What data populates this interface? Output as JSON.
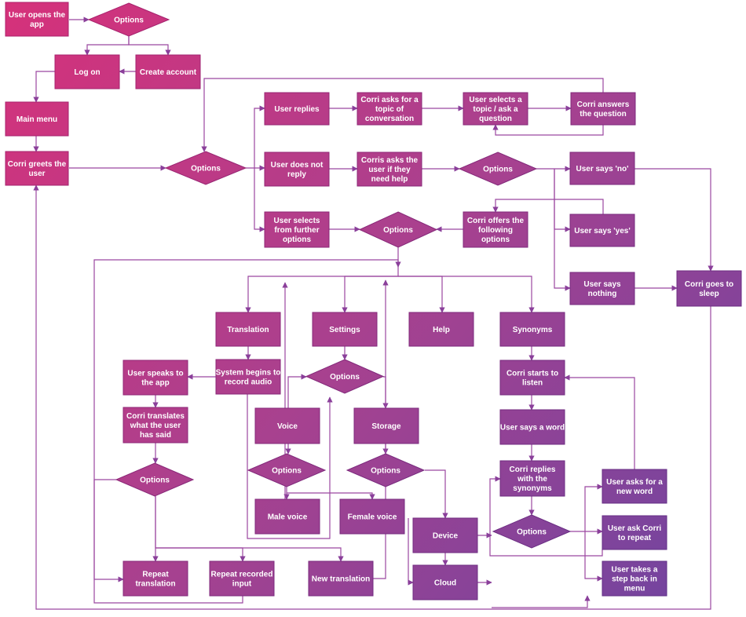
{
  "colors": {
    "start": "#d6317a",
    "mid": "#a8418f",
    "end": "#6c45a1",
    "stroke_start": "#b1206a",
    "stroke_end": "#57318a"
  },
  "nodes": [
    {
      "id": "n_open",
      "shape": "rect",
      "label": "User opens the app"
    },
    {
      "id": "d_start",
      "shape": "diamond",
      "label": "Options"
    },
    {
      "id": "n_logon",
      "shape": "rect",
      "label": "Log on"
    },
    {
      "id": "n_create",
      "shape": "rect",
      "label": "Create account"
    },
    {
      "id": "n_main",
      "shape": "rect",
      "label": "Main menu"
    },
    {
      "id": "n_greet",
      "shape": "rect",
      "label": "Corri greets the user"
    },
    {
      "id": "d_greet",
      "shape": "diamond",
      "label": "Options"
    },
    {
      "id": "n_replies",
      "shape": "rect",
      "label": "User replies"
    },
    {
      "id": "n_asktopic",
      "shape": "rect",
      "label": "Corri asks for a topic of conversation"
    },
    {
      "id": "n_selecttopic",
      "shape": "rect",
      "label": "User selects a topic / ask a question"
    },
    {
      "id": "n_answers",
      "shape": "rect",
      "label": "Corri answers the question"
    },
    {
      "id": "n_noreply",
      "shape": "rect",
      "label": "User does not reply"
    },
    {
      "id": "n_askhelp",
      "shape": "rect",
      "label": "Corris asks the user if they need help"
    },
    {
      "id": "d_help",
      "shape": "diamond",
      "label": "Options"
    },
    {
      "id": "n_no",
      "shape": "rect",
      "label": "User says 'no'"
    },
    {
      "id": "n_yes",
      "shape": "rect",
      "label": "User says 'yes'"
    },
    {
      "id": "n_nothing",
      "shape": "rect",
      "label": "User says nothing"
    },
    {
      "id": "n_sleep",
      "shape": "rect",
      "label": "Corri goes to sleep"
    },
    {
      "id": "n_further",
      "shape": "rect",
      "label": "User selects from further options"
    },
    {
      "id": "d_further",
      "shape": "diamond",
      "label": "Options"
    },
    {
      "id": "n_offers",
      "shape": "rect",
      "label": "Corri offers the following options"
    },
    {
      "id": "n_translation",
      "shape": "rect",
      "label": "Translation"
    },
    {
      "id": "n_settings",
      "shape": "rect",
      "label": "Settings"
    },
    {
      "id": "n_help",
      "shape": "rect",
      "label": "Help"
    },
    {
      "id": "n_synonyms",
      "shape": "rect",
      "label": "Synonyms"
    },
    {
      "id": "n_record",
      "shape": "rect",
      "label": "System begins to record audio"
    },
    {
      "id": "n_speaks",
      "shape": "rect",
      "label": "User speaks to the app"
    },
    {
      "id": "n_translates",
      "shape": "rect",
      "label": "Corri translates what the user has said"
    },
    {
      "id": "d_trans",
      "shape": "diamond",
      "label": "Options"
    },
    {
      "id": "n_repeattrans",
      "shape": "rect",
      "label": "Repeat translation"
    },
    {
      "id": "n_repeatrec",
      "shape": "rect",
      "label": "Repeat recorded input"
    },
    {
      "id": "n_newtrans",
      "shape": "rect",
      "label": "New translation"
    },
    {
      "id": "d_settings",
      "shape": "diamond",
      "label": "Options"
    },
    {
      "id": "n_voice",
      "shape": "rect",
      "label": "Voice"
    },
    {
      "id": "n_storage",
      "shape": "rect",
      "label": "Storage"
    },
    {
      "id": "d_voice",
      "shape": "diamond",
      "label": "Options"
    },
    {
      "id": "d_storage",
      "shape": "diamond",
      "label": "Options"
    },
    {
      "id": "n_male",
      "shape": "rect",
      "label": "Male voice"
    },
    {
      "id": "n_female",
      "shape": "rect",
      "label": "Female voice"
    },
    {
      "id": "n_device",
      "shape": "rect",
      "label": "Device"
    },
    {
      "id": "n_cloud",
      "shape": "rect",
      "label": "Cloud"
    },
    {
      "id": "n_listen",
      "shape": "rect",
      "label": "Corri starts to listen"
    },
    {
      "id": "n_sayword",
      "shape": "rect",
      "label": "User says a word"
    },
    {
      "id": "n_synreply",
      "shape": "rect",
      "label": "Corri replies with the synonyms"
    },
    {
      "id": "d_syn",
      "shape": "diamond",
      "label": "Options"
    },
    {
      "id": "n_newword",
      "shape": "rect",
      "label": "User asks for a new word"
    },
    {
      "id": "n_askrepeat",
      "shape": "rect",
      "label": "User ask Corri to repeat"
    },
    {
      "id": "n_stepback",
      "shape": "rect",
      "label": "User takes a step back in menu"
    }
  ]
}
